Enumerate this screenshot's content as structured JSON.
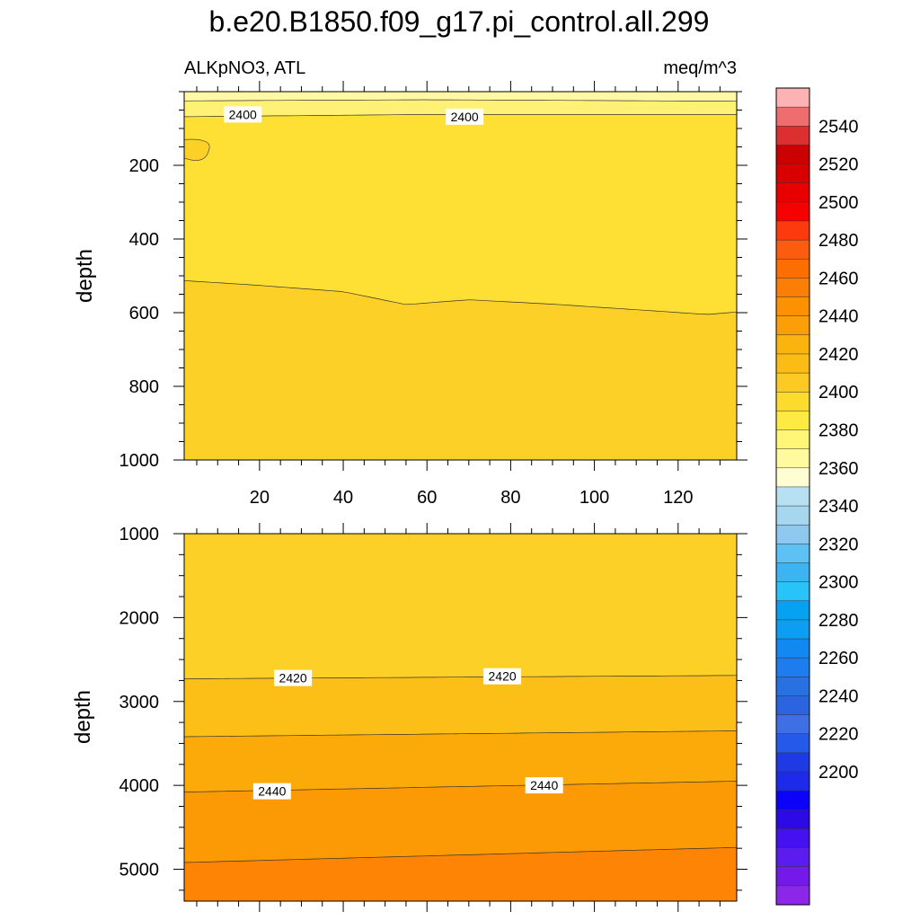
{
  "chart_data": [
    {
      "type": "contour",
      "title": "b.e20.B1850.f09_g17.pi_control.all.299",
      "left_subtitle": "ALKpNO3, ATL",
      "right_subtitle": "meq/m^3",
      "ylabel": "depth",
      "xlim": [
        2,
        134
      ],
      "ylim": [
        0,
        1000
      ],
      "y_inverted": true,
      "x_ticks": [
        20,
        40,
        60,
        80,
        100,
        120
      ],
      "y_ticks": [
        200,
        400,
        600,
        800,
        1000
      ],
      "bands": [
        {
          "from_depth": 0,
          "color": "#fff9a5"
        },
        {
          "from_depth": 25,
          "color": "#fff176"
        },
        {
          "from_depth": 65,
          "color": "#fde033"
        },
        {
          "from_depth": 540,
          "color": "#fdd028"
        }
      ],
      "contour_lines": [
        {
          "level": 2380,
          "depth_at_x": [
            [
              2,
              25
            ],
            [
              60,
              22
            ],
            [
              134,
              26
            ]
          ]
        },
        {
          "level": 2400,
          "depth_at_x": [
            [
              2,
              68
            ],
            [
              60,
              62
            ],
            [
              134,
              62
            ]
          ]
        },
        {
          "level": 2410,
          "depth_at_x": [
            [
              2,
              513
            ],
            [
              20,
              526
            ],
            [
              40,
              543
            ],
            [
              55,
              578
            ],
            [
              70,
              565
            ],
            [
              90,
              577
            ],
            [
              110,
              592
            ],
            [
              127,
              605
            ],
            [
              134,
              598
            ]
          ]
        }
      ],
      "contour_labels": [
        {
          "text": "2400",
          "x": 16,
          "depth": 62
        },
        {
          "text": "2400",
          "x": 69,
          "depth": 68
        }
      ],
      "small_patch": {
        "x": [
          2,
          7
        ],
        "depth": [
          130,
          190
        ]
      }
    },
    {
      "type": "contour",
      "ylabel": "depth",
      "xlim": [
        2,
        134
      ],
      "ylim": [
        1000,
        5380
      ],
      "y_inverted": true,
      "x_ticks": [
        20,
        40,
        60,
        80,
        100,
        120
      ],
      "y_ticks": [
        1000,
        2000,
        3000,
        4000,
        5000
      ],
      "bands": [
        {
          "from_depth": 1000,
          "color": "#fdd028"
        },
        {
          "from_depth": 2700,
          "color": "#fbbf18"
        },
        {
          "from_depth": 3400,
          "color": "#fbaa0a"
        },
        {
          "from_depth": 4000,
          "color": "#fb9a05"
        },
        {
          "from_depth": 4850,
          "color": "#fd8404"
        }
      ],
      "contour_lines": [
        {
          "level": 2420,
          "depth_at_x": [
            [
              2,
              2730
            ],
            [
              134,
              2690
            ]
          ]
        },
        {
          "level": 2430,
          "depth_at_x": [
            [
              2,
              3420
            ],
            [
              134,
              3350
            ]
          ]
        },
        {
          "level": 2440,
          "depth_at_x": [
            [
              2,
              4080
            ],
            [
              134,
              3950
            ]
          ]
        },
        {
          "level": 2450,
          "depth_at_x": [
            [
              2,
              4920
            ],
            [
              134,
              4740
            ]
          ]
        }
      ],
      "contour_labels": [
        {
          "text": "2420",
          "x": 28,
          "depth": 2720
        },
        {
          "text": "2420",
          "x": 78,
          "depth": 2700
        },
        {
          "text": "2440",
          "x": 23,
          "depth": 4070
        },
        {
          "text": "2440",
          "x": 88,
          "depth": 4000
        }
      ]
    }
  ],
  "colorbar": {
    "tick_labels": [
      "2540",
      "2520",
      "2500",
      "2480",
      "2460",
      "2440",
      "2420",
      "2400",
      "2380",
      "2360",
      "2340",
      "2320",
      "2300",
      "2280",
      "2260",
      "2240",
      "2220",
      "2200"
    ],
    "colors": [
      "#fdb2b4",
      "#ee6d6e",
      "#dc2f30",
      "#cb0000",
      "#d90000",
      "#e80000",
      "#f70000",
      "#fb3a0e",
      "#fb5c0e",
      "#fd6e00",
      "#fb7f06",
      "#fb9103",
      "#fb9e07",
      "#fbb30d",
      "#fbbd15",
      "#fdca24",
      "#fddb2d",
      "#fdeb43",
      "#fff577",
      "#fffa9d",
      "#fffdd1",
      "#b7e1f3",
      "#a6d7ef",
      "#8ec8ef",
      "#5dc2f3",
      "#3bb4f1",
      "#27c3f9",
      "#06a2f1",
      "#0c9ef2",
      "#1289f0",
      "#1e7dee",
      "#2871e2",
      "#2a65df",
      "#3f6fe4",
      "#2559ea",
      "#1d3ae4",
      "#1d2aea",
      "#0a03f7",
      "#2d0ae5",
      "#4511ef",
      "#5b1cef",
      "#7518ea",
      "#8c27ea"
    ],
    "colors_order": "top_to_bottom"
  }
}
